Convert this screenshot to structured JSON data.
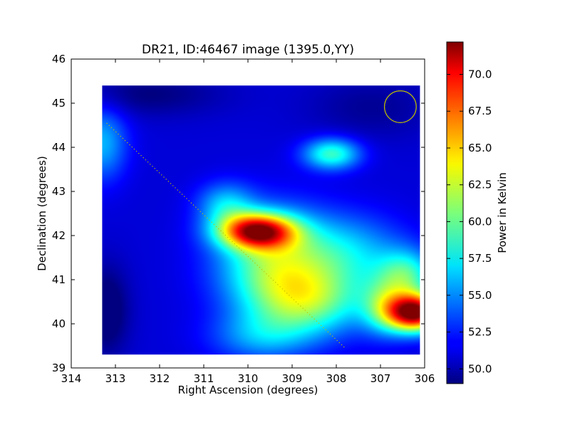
{
  "chart_data": {
    "type": "heatmap",
    "title": "DR21, ID:46467 image (1395.0,YY)",
    "xlabel": "Right Ascension (degrees)",
    "ylabel": "Declination (degrees)",
    "xlim": [
      314,
      306
    ],
    "ylim": [
      39,
      46
    ],
    "x_ticks": [
      "314",
      "313",
      "312",
      "311",
      "310",
      "309",
      "308",
      "307",
      "306"
    ],
    "y_ticks": [
      "39",
      "40",
      "41",
      "42",
      "43",
      "44",
      "45",
      "46"
    ],
    "image_extent": {
      "ra": [
        313.3,
        306.1
      ],
      "dec": [
        39.3,
        45.4
      ]
    },
    "value_range": [
      49.0,
      72.2
    ],
    "background_level": 51.0,
    "colormap": "jet",
    "colorbar": {
      "label": "Power in Kelvin",
      "ticks": [
        "50.0",
        "52.5",
        "55.0",
        "57.5",
        "60.0",
        "62.5",
        "65.0",
        "67.5",
        "70.0"
      ],
      "range": [
        49.0,
        72.2
      ]
    },
    "components": [
      {
        "ra": 306.2,
        "dec": 40.25,
        "s_ra": 0.45,
        "s_dec": 0.3,
        "amp": 21.0
      },
      {
        "ra": 306.9,
        "dec": 40.4,
        "s_ra": 0.4,
        "s_dec": 0.45,
        "amp": 6.0
      },
      {
        "ra": 306.4,
        "dec": 41.1,
        "s_ra": 0.45,
        "s_dec": 0.4,
        "amp": 7.0
      },
      {
        "ra": 309.8,
        "dec": 42.1,
        "s_ra": 0.6,
        "s_dec": 0.28,
        "amp": 17.0
      },
      {
        "ra": 309.4,
        "dec": 41.4,
        "s_ra": 0.9,
        "s_dec": 0.8,
        "amp": 9.0
      },
      {
        "ra": 308.6,
        "dec": 40.5,
        "s_ra": 0.9,
        "s_dec": 0.55,
        "amp": 8.0
      },
      {
        "ra": 307.7,
        "dec": 41.6,
        "s_ra": 0.9,
        "s_dec": 0.6,
        "amp": 5.0
      },
      {
        "ra": 309.7,
        "dec": 39.7,
        "s_ra": 0.8,
        "s_dec": 0.4,
        "amp": 4.0
      },
      {
        "ra": 310.5,
        "dec": 42.7,
        "s_ra": 0.45,
        "s_dec": 0.35,
        "amp": 5.0
      },
      {
        "ra": 308.1,
        "dec": 43.85,
        "s_ra": 0.45,
        "s_dec": 0.25,
        "amp": 8.0
      },
      {
        "ra": 313.3,
        "dec": 44.1,
        "s_ra": 0.4,
        "s_dec": 0.6,
        "amp": 5.0
      },
      {
        "ra": 313.2,
        "dec": 40.3,
        "s_ra": 0.35,
        "s_dec": 0.7,
        "amp": -3.0
      },
      {
        "ra": 312.3,
        "dec": 45.2,
        "s_ra": 1.2,
        "s_dec": 0.35,
        "amp": -2.0
      },
      {
        "ra": 307.2,
        "dec": 44.9,
        "s_ra": 1.0,
        "s_dec": 0.5,
        "amp": -1.5
      }
    ],
    "beam_circle": {
      "ra": 306.55,
      "dec": 44.92,
      "radius_deg": 0.36,
      "color": "#bfbf00"
    },
    "scan_line": {
      "points": [
        [
          313.2,
          44.55
        ],
        [
          307.8,
          39.45
        ]
      ],
      "color": "#bfbf00",
      "style": "dotted"
    },
    "grid": false
  }
}
